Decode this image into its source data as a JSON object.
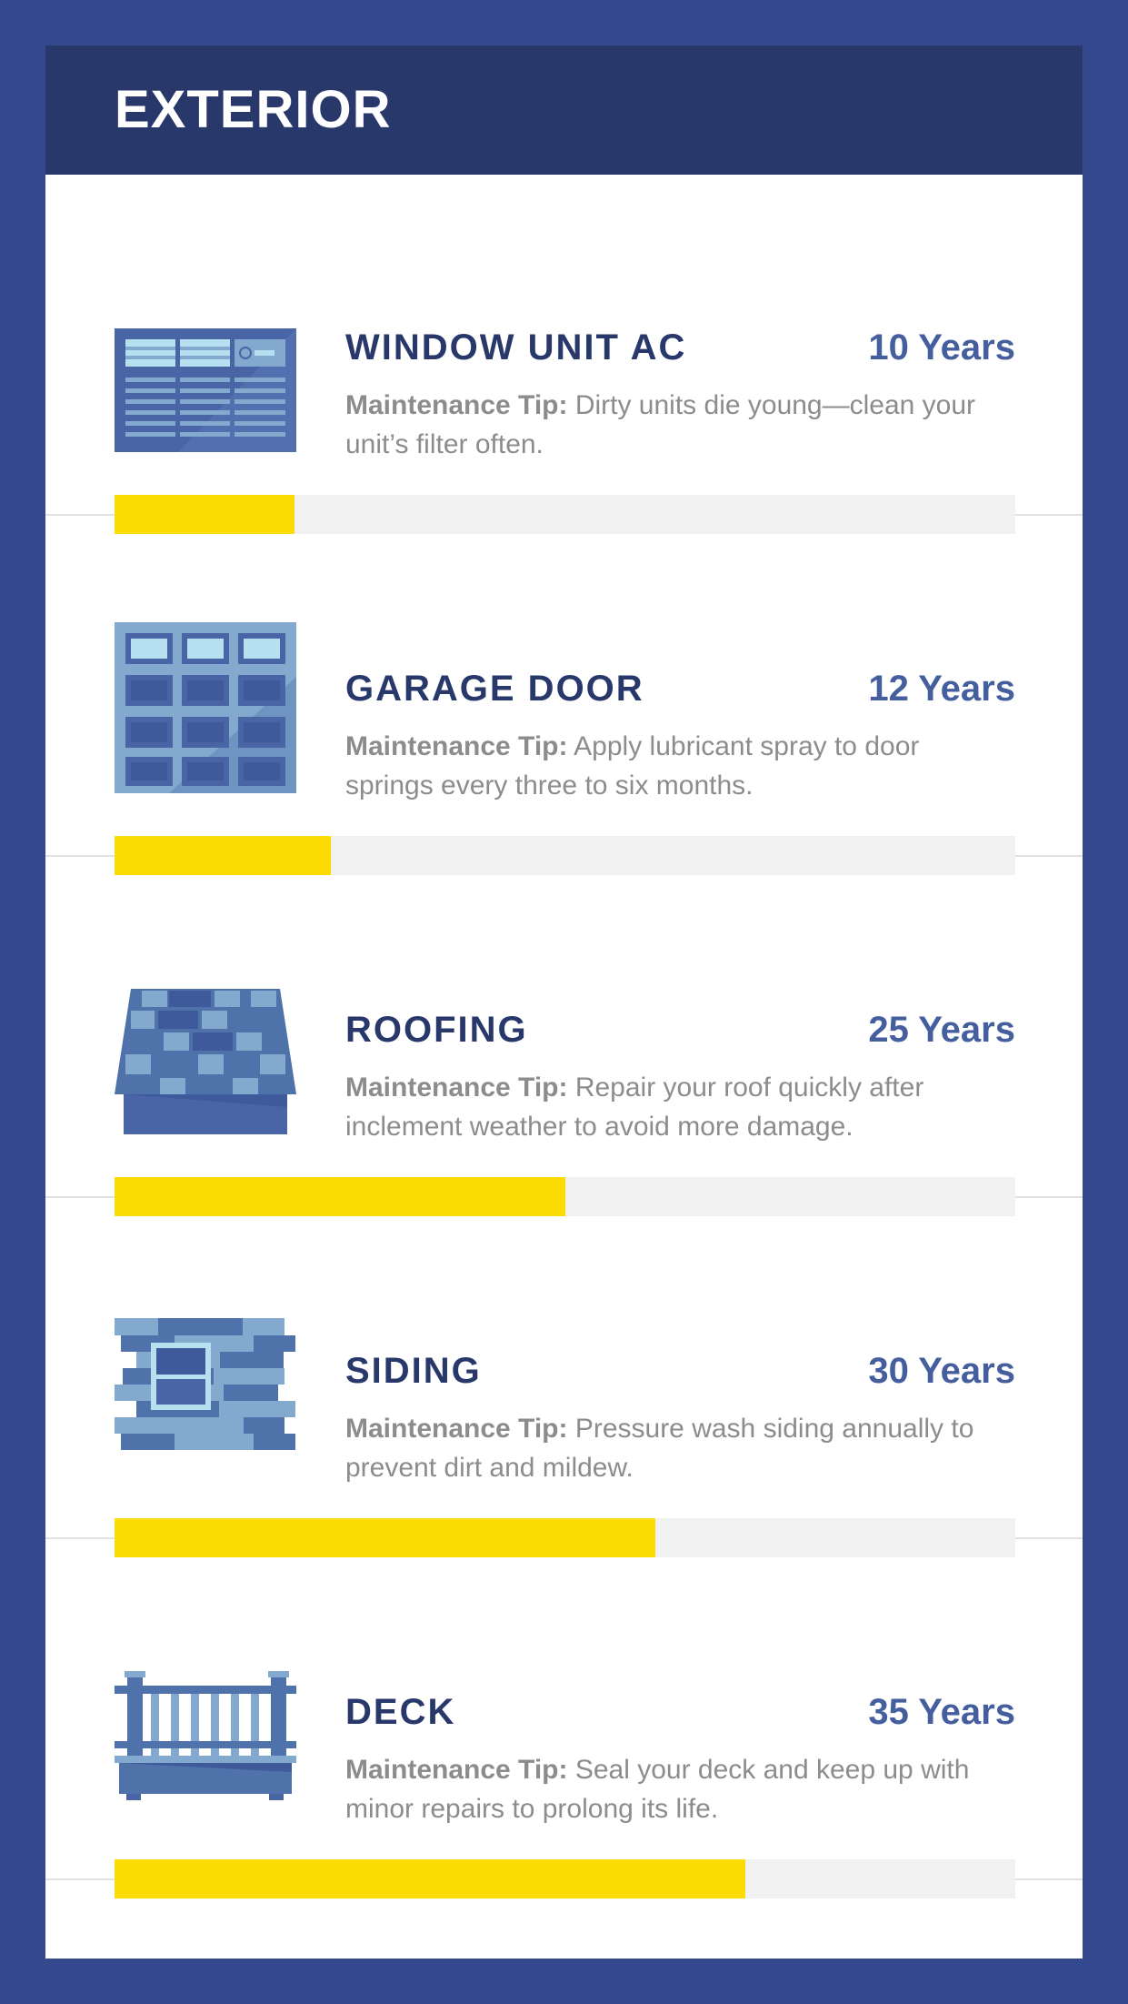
{
  "header": {
    "title": "EXTERIOR"
  },
  "max_years": 50,
  "colors": {
    "background": "#354a8e",
    "header": "#29386b",
    "bar_fill": "#fcdc04",
    "bar_track": "#f1f1f1",
    "title": "#29386b",
    "years": "#455e9e"
  },
  "items": [
    {
      "title": "WINDOW UNIT AC",
      "years_label": "10 Years",
      "years": 10,
      "tip_label": "Maintenance Tip:",
      "tip": " Dirty units die young—clean your unit’s filter often.",
      "icon": "window-ac-icon"
    },
    {
      "title": "GARAGE DOOR",
      "years_label": "12 Years",
      "years": 12,
      "tip_label": "Maintenance Tip:",
      "tip": " Apply lubricant spray to door springs every three to six months.",
      "icon": "garage-door-icon"
    },
    {
      "title": "ROOFING",
      "years_label": "25 Years",
      "years": 25,
      "tip_label": "Maintenance Tip:",
      "tip": " Repair your roof quickly after inclement weather to avoid more damage.",
      "icon": "roof-icon"
    },
    {
      "title": "SIDING",
      "years_label": "30 Years",
      "years": 30,
      "tip_label": "Maintenance Tip:",
      "tip": " Pressure wash siding annually to prevent dirt and mildew.",
      "icon": "siding-icon"
    },
    {
      "title": "DECK",
      "years_label": "35 Years",
      "years": 35,
      "tip_label": "Maintenance Tip:",
      "tip": " Seal your deck and keep up with minor repairs to prolong its life.",
      "icon": "deck-icon"
    }
  ]
}
